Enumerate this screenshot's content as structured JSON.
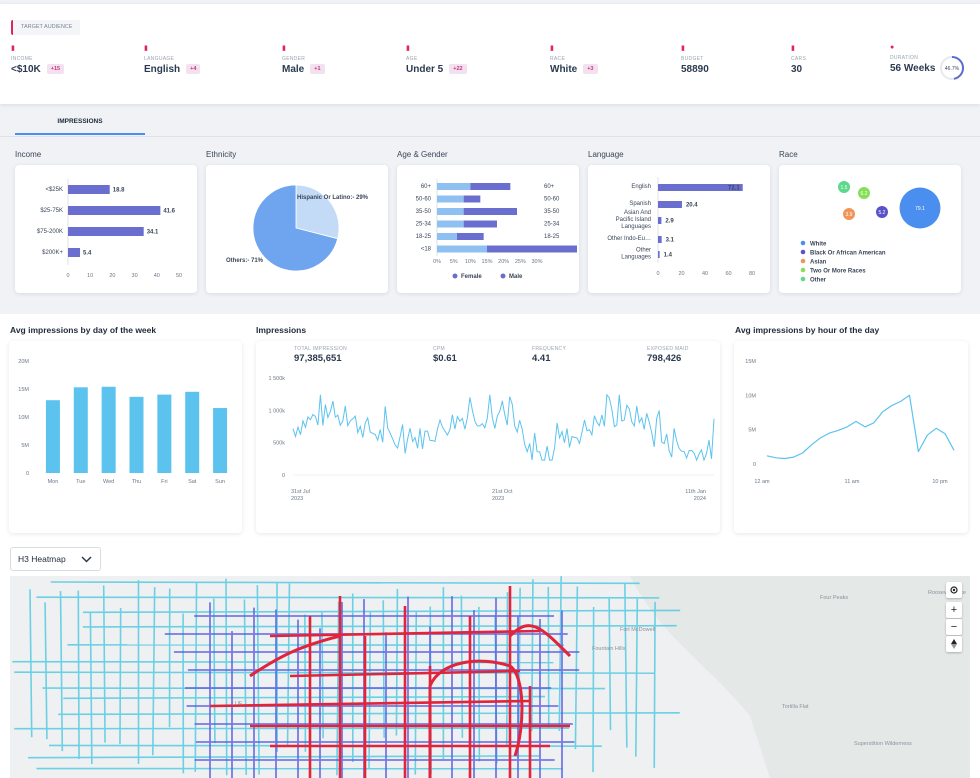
{
  "header": {
    "tag": "TARGET AUDIENCE"
  },
  "kpis": [
    {
      "label": "INCOME",
      "value": "<$10K",
      "badge": "+15"
    },
    {
      "label": "LANGUAGE",
      "value": "English",
      "badge": "+4"
    },
    {
      "label": "GENDER",
      "value": "Male",
      "badge": "+1"
    },
    {
      "label": "AGE",
      "value": "Under 5",
      "badge": "+22"
    },
    {
      "label": "RACE",
      "value": "White",
      "badge": "+3"
    },
    {
      "label": "BUDGET",
      "value": "58890"
    },
    {
      "label": "CARS",
      "value": "30"
    },
    {
      "label": "DURATION",
      "value": "56 Weeks"
    }
  ],
  "progress": {
    "percent": 46.7,
    "label": "46.7%"
  },
  "tabs": {
    "impressions": "IMPRESSIONS"
  },
  "demo": {
    "income": "Income",
    "ethnicity": "Ethnicity",
    "age_gender": "Age & Gender",
    "language": "Language",
    "race": "Race"
  },
  "income_chart": {
    "type": "bar",
    "categories": [
      "<$25K",
      "$25-75K",
      "$75-200K",
      "$200K+"
    ],
    "values": [
      18.8,
      41.6,
      34.1,
      5.4
    ],
    "value_labels": [
      "18.8",
      "41.6",
      "34.1",
      "5.4"
    ],
    "ticks": [
      "0",
      "10",
      "20",
      "30",
      "40",
      "50"
    ],
    "xlim": [
      0,
      50
    ]
  },
  "ethnicity_chart": {
    "type": "pie",
    "slices": [
      {
        "label": "Hispanic Or Latino:- 29%",
        "value": 29
      },
      {
        "label": "Others:- 71%",
        "value": 71
      }
    ]
  },
  "age_chart": {
    "type": "bar",
    "categories": [
      "60+",
      "50-60",
      "35-50",
      "25-34",
      "18-25",
      "<18"
    ],
    "female": [
      10,
      8,
      8,
      8,
      6,
      15
    ],
    "male": [
      12,
      5,
      16,
      10,
      8,
      27
    ],
    "ticks": [
      "0%",
      "5%",
      "10%",
      "15%",
      "20%",
      "25%",
      "30%"
    ],
    "legend": [
      "Female",
      "Male"
    ]
  },
  "language_chart": {
    "type": "bar",
    "categories": [
      "English",
      "Spanish",
      "Asian And Pacific Island Languages",
      "Other Indo-Eu…",
      "Other Languages"
    ],
    "cat_lines": [
      [
        "English"
      ],
      [
        "Spanish"
      ],
      [
        "Asian And",
        "Pacific Island",
        "Languages"
      ],
      [
        "Other Indo-Eu…"
      ],
      [
        "Other",
        "Languages"
      ]
    ],
    "values": [
      72.1,
      20.4,
      2.9,
      3.1,
      1.4
    ],
    "value_labels": [
      "72.1",
      "20.4",
      "2.9",
      "3.1",
      "1.4"
    ],
    "ticks": [
      "0",
      "20",
      "40",
      "60",
      "80"
    ],
    "xlim": [
      0,
      80
    ]
  },
  "race_chart": {
    "type": "bubble",
    "bubbles": [
      {
        "name": "White",
        "value": 79.1,
        "label": "79.1",
        "color": "#4a8ff0"
      },
      {
        "name": "Black Or African American",
        "value": 5.2,
        "label": "5.2",
        "color": "#5b52c9"
      },
      {
        "name": "Asian",
        "value": 3.9,
        "label": "3.9",
        "color": "#f0945a"
      },
      {
        "name": "Two Or More Races",
        "value": 6.2,
        "label": "6.2",
        "color": "#86df5a"
      },
      {
        "name": "Other",
        "value": 1.5,
        "label": "1.5",
        "color": "#5cd98c"
      }
    ],
    "legend": [
      "White",
      "Black Or African American",
      "Asian",
      "Two Or More Races",
      "Other"
    ]
  },
  "dow_chart": {
    "type": "bar",
    "title": "Avg impressions by day of the week",
    "categories": [
      "Mon",
      "Tue",
      "Wed",
      "Thu",
      "Fri",
      "Sat",
      "Sun"
    ],
    "values": [
      13,
      15.3,
      15.4,
      13.6,
      14,
      14.5,
      11.6
    ],
    "ticks": [
      "0",
      "5M",
      "10M",
      "15M",
      "20M"
    ],
    "ylim": [
      0,
      20
    ]
  },
  "imp_chart": {
    "type": "line",
    "title": "Impressions",
    "stats": [
      {
        "label": "TOTAL IMPRESSION",
        "value": "97,385,651"
      },
      {
        "label": "CPM",
        "value": "$0.61"
      },
      {
        "label": "FREQUENCY",
        "value": "4.41"
      },
      {
        "label": "EXPOSED MAID",
        "value": "798,426"
      }
    ],
    "ticks": [
      "0",
      "500k",
      "1 000k",
      "1 500k"
    ],
    "ylim": [
      0,
      1500
    ],
    "x_labels": [
      [
        "31st Jul",
        "2023"
      ],
      [
        "21st Oct",
        "2023"
      ],
      [
        "11th Jan",
        "2024"
      ]
    ]
  },
  "hour_chart": {
    "type": "line",
    "title": "Avg impressions by hour of the day",
    "values": [
      1.2,
      0.9,
      0.8,
      1.0,
      1.6,
      2.8,
      3.8,
      4.5,
      4.9,
      5.4,
      6.2,
      5.4,
      6.0,
      7.6,
      8.5,
      9.1,
      10.0,
      1.8,
      4.2,
      5.2,
      4.4,
      2.0
    ],
    "ticks": [
      "0",
      "5M",
      "10M",
      "15M"
    ],
    "ylim": [
      0,
      15
    ],
    "x_labels": [
      "12 am",
      "11 am",
      "10 pm"
    ]
  },
  "map": {
    "dropdown": "H3 Heatmap",
    "places": [
      "Four Peaks",
      "Fort McDowell",
      "Fountain Hills",
      "Tortilla Flat",
      "Superstition Wilderness",
      "LUF",
      "Roosevelt Lake"
    ],
    "controls": {
      "zoom_in": "+",
      "zoom_out": "−"
    }
  }
}
